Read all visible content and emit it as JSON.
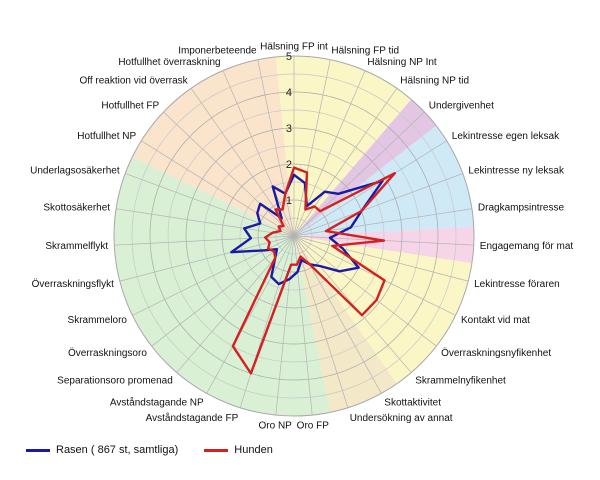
{
  "chart_data": {
    "type": "radar",
    "title": "",
    "rmax": 5,
    "ticks": [
      1,
      2,
      3,
      4,
      5
    ],
    "categories": [
      "Hälsning FP int",
      "Hälsning FP tid",
      "Hälsning NP Int",
      "Hälsning NP tid",
      "Undergivenhet",
      "Lekintresse egen leksak",
      "Lekintresse ny leksak",
      "Dragkampsintresse",
      "Engagemang för mat",
      "Lekintresse föraren",
      "Kontakt vid mat",
      "Överraskningsnyfikenhet",
      "Skrammelnyfikenhet",
      "Skottaktivitet",
      "Undersökning av annat",
      "Oro FP",
      "Oro NP",
      "Avståndstagande FP",
      "Avståndstagande NP",
      "Separationsoro promenad",
      "Överraskningsoro",
      "Skrammeloro",
      "Överraskningsflykt",
      "Skrammelflykt",
      "Skottosäkerhet",
      "Underlagsosäkerhet",
      "Hotfullhet NP",
      "Hotfullhet FP",
      "Off reaktion vid överrask",
      "Hotfullhet överraskning",
      "Imponerbeteende"
    ],
    "series": [
      {
        "name": "Rasen ( 867 st, samtliga)",
        "color": "#1a1aa6",
        "values": [
          1.7,
          1.5,
          0.9,
          1.5,
          1.7,
          2.9,
          2.0,
          1.6,
          1.0,
          1.4,
          2.0,
          1.6,
          1.1,
          0.9,
          0.7,
          1.0,
          1.2,
          1.4,
          1.3,
          0.8,
          0.6,
          0.9,
          1.8,
          1.2,
          1.4,
          1.0,
          1.2,
          1.3,
          0.6,
          1.5,
          1.2
        ]
      },
      {
        "name": "Hunden",
        "color": "#d42020",
        "values": [
          1.9,
          1.8,
          0.8,
          1.0,
          1.0,
          3.3,
          2.0,
          0.9,
          2.5,
          1.1,
          2.8,
          2.9,
          2.9,
          0.9,
          0.6,
          0.8,
          0.8,
          4.0,
          3.5,
          0.8,
          0.7,
          0.8,
          0.7,
          0.8,
          0.6,
          0.4,
          0.5,
          0.4,
          0.9,
          0.8,
          1.2
        ]
      }
    ],
    "sector_colors": [
      {
        "from": 0,
        "to": 3,
        "color": "#fbf6c6"
      },
      {
        "from": 4,
        "to": 4,
        "color": "#e2c6e4"
      },
      {
        "from": 5,
        "to": 7,
        "color": "#cfe9f6"
      },
      {
        "from": 8,
        "to": 8,
        "color": "#f7d5e8"
      },
      {
        "from": 9,
        "to": 12,
        "color": "#fbf6c6"
      },
      {
        "from": 13,
        "to": 14,
        "color": "#f3e8c8"
      },
      {
        "from": 15,
        "to": 25,
        "color": "#d9f0d4"
      },
      {
        "from": 26,
        "to": 30,
        "color": "#fbe4cc"
      }
    ],
    "legend_position": "bottom-left"
  }
}
